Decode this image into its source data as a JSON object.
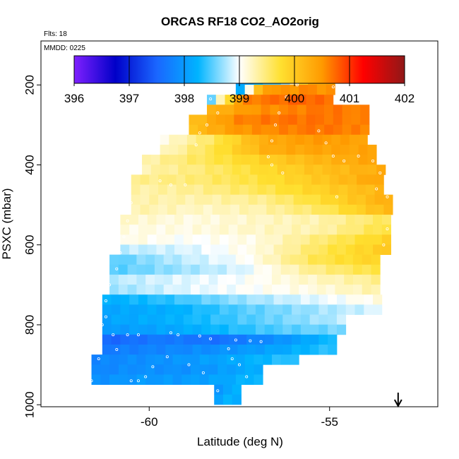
{
  "chart_data": {
    "type": "heatmap",
    "title": "ORCAS RF18 CO2_AO2orig",
    "subtitle_flights": "Flts: 18",
    "subtitle_date": "MMDD: 0225",
    "xlabel": "Latitude (deg N)",
    "ylabel": "PSXC (mbar)",
    "xlim": [
      -63.0,
      -52.0
    ],
    "ylim": [
      1005,
      90
    ],
    "x_ticks": [
      -60,
      -55
    ],
    "x_tick_labels": [
      "-60",
      "-55"
    ],
    "y_ticks": [
      200,
      400,
      600,
      800,
      1000
    ],
    "y_tick_labels": [
      "200",
      "400",
      "600",
      "800",
      "1000"
    ],
    "colorbar": {
      "range": [
        396,
        402
      ],
      "ticks": [
        396,
        397,
        398,
        399,
        400,
        401,
        402
      ],
      "tick_labels": [
        "396",
        "397",
        "398",
        "399",
        "400",
        "401",
        "402"
      ],
      "colors": [
        "#8020ff",
        "#0000c8",
        "#1a66ff",
        "#00b4ff",
        "#ffffff",
        "#ffe030",
        "#ff9a00",
        "#ff0000",
        "#901818"
      ]
    },
    "cell_width_deg": 0.25,
    "cell_height_mbar": 25,
    "rows": [
      {
        "p": 187,
        "lat0": -57.6,
        "lat1": -54.8,
        "c": [
          398.0,
          398.3,
          398.6,
          400.2,
          400.4
        ]
      },
      {
        "p": 212,
        "lat0": -57.6,
        "lat1": -54.8,
        "c": [
          398.2,
          400.5,
          400.5,
          400.6,
          400.5
        ]
      },
      {
        "p": 237,
        "lat0": -58.4,
        "lat1": -54.8,
        "c": [
          398.6,
          400.6,
          400.7,
          400.8,
          400.7
        ]
      },
      {
        "p": 262,
        "lat0": -58.4,
        "lat1": -54.0,
        "c": [
          400.2,
          400.5,
          400.6,
          400.7,
          400.6
        ]
      },
      {
        "p": 287,
        "lat0": -58.9,
        "lat1": -54.0,
        "c": [
          400.1,
          400.6,
          400.7,
          400.7,
          400.6
        ]
      },
      {
        "p": 312,
        "lat0": -58.9,
        "lat1": -54.0,
        "c": [
          400.1,
          400.5,
          400.6,
          400.7,
          400.6
        ]
      },
      {
        "p": 337,
        "lat0": -59.7,
        "lat1": -54.0,
        "c": [
          399.1,
          399.6,
          400.3,
          400.5,
          400.4
        ]
      },
      {
        "p": 362,
        "lat0": -59.7,
        "lat1": -53.7,
        "c": [
          399.2,
          399.7,
          400.3,
          400.4,
          400.4
        ]
      },
      {
        "p": 387,
        "lat0": -60.2,
        "lat1": -53.7,
        "c": [
          399.3,
          399.6,
          399.9,
          400.2,
          400.4
        ]
      },
      {
        "p": 412,
        "lat0": -60.2,
        "lat1": -53.5,
        "c": [
          399.3,
          399.5,
          399.8,
          400.1,
          400.3
        ]
      },
      {
        "p": 437,
        "lat0": -60.5,
        "lat1": -53.5,
        "c": [
          399.4,
          399.5,
          399.7,
          400.0,
          400.4
        ]
      },
      {
        "p": 462,
        "lat0": -60.5,
        "lat1": -53.5,
        "c": [
          399.3,
          399.4,
          399.6,
          399.9,
          400.2
        ]
      },
      {
        "p": 487,
        "lat0": -60.5,
        "lat1": -53.3,
        "c": [
          399.3,
          399.3,
          399.4,
          399.8,
          400.3
        ]
      },
      {
        "p": 512,
        "lat0": -60.5,
        "lat1": -53.3,
        "c": [
          399.3,
          399.2,
          399.3,
          399.6,
          400.2
        ]
      },
      {
        "p": 537,
        "lat0": -60.8,
        "lat1": -53.3,
        "c": [
          399.2,
          399.1,
          399.2,
          399.3,
          399.6
        ]
      },
      {
        "p": 562,
        "lat0": -60.8,
        "lat1": -53.3,
        "c": [
          399.1,
          399.1,
          399.2,
          399.3,
          399.7
        ]
      },
      {
        "p": 587,
        "lat0": -60.8,
        "lat1": -53.3,
        "c": [
          399.1,
          399.0,
          399.1,
          399.5,
          399.9
        ]
      },
      {
        "p": 612,
        "lat0": -60.8,
        "lat1": -53.3,
        "c": [
          398.8,
          398.9,
          399.1,
          399.6,
          400.0
        ]
      },
      {
        "p": 637,
        "lat0": -61.1,
        "lat1": -53.5,
        "c": [
          398.5,
          398.8,
          399.0,
          399.6,
          399.9
        ]
      },
      {
        "p": 662,
        "lat0": -61.1,
        "lat1": -53.5,
        "c": [
          398.5,
          398.7,
          398.9,
          399.4,
          399.7
        ]
      },
      {
        "p": 687,
        "lat0": -61.1,
        "lat1": -53.5,
        "c": [
          398.8,
          398.9,
          399.0,
          399.2,
          399.4
        ]
      },
      {
        "p": 712,
        "lat0": -61.1,
        "lat1": -53.5,
        "c": [
          398.7,
          398.9,
          399.0,
          399.1,
          399.3
        ]
      },
      {
        "p": 737,
        "lat0": -61.3,
        "lat1": -53.5,
        "c": [
          398.2,
          398.4,
          398.7,
          398.9,
          399.1
        ]
      },
      {
        "p": 762,
        "lat0": -61.3,
        "lat1": -53.5,
        "c": [
          398.1,
          398.2,
          398.5,
          398.7,
          398.9
        ]
      },
      {
        "p": 787,
        "lat0": -61.3,
        "lat1": -54.6,
        "c": [
          398.1,
          398.2,
          398.4,
          398.6,
          398.8
        ]
      },
      {
        "p": 812,
        "lat0": -61.3,
        "lat1": -54.6,
        "c": [
          398.0,
          398.1,
          398.3,
          398.5,
          398.6
        ]
      },
      {
        "p": 837,
        "lat0": -61.3,
        "lat1": -54.9,
        "c": [
          397.5,
          397.7,
          397.6,
          397.9,
          398.3
        ]
      },
      {
        "p": 862,
        "lat0": -61.3,
        "lat1": -54.9,
        "c": [
          397.7,
          397.8,
          397.9,
          398.1,
          398.4
        ]
      },
      {
        "p": 887,
        "lat0": -61.6,
        "lat1": -55.9,
        "c": [
          397.8,
          397.9,
          398.0,
          398.2,
          398.4
        ]
      },
      {
        "p": 912,
        "lat0": -61.6,
        "lat1": -56.9,
        "c": [
          397.8,
          397.9,
          397.9,
          398.0,
          398.2
        ]
      },
      {
        "p": 937,
        "lat0": -61.6,
        "lat1": -56.9,
        "c": [
          397.9,
          398.0,
          398.0,
          398.1,
          398.3
        ]
      },
      {
        "p": 962,
        "lat0": -58.2,
        "lat1": -57.4,
        "c": [
          398.0,
          398.1,
          398.1,
          398.2,
          398.2
        ]
      },
      {
        "p": 987,
        "lat0": -58.2,
        "lat1": -57.4,
        "c": [
          398.1,
          398.2,
          398.2,
          398.2,
          398.2
        ]
      }
    ],
    "track_points": [
      [
        -57.0,
        185
      ],
      [
        -56.6,
        185
      ],
      [
        -56.2,
        185
      ],
      [
        -55.8,
        185
      ],
      [
        -55.4,
        185
      ],
      [
        -55.1,
        190
      ],
      [
        -54.9,
        205
      ],
      [
        -54.8,
        225
      ],
      [
        -54.6,
        240
      ],
      [
        -55.9,
        200
      ],
      [
        -56.2,
        230
      ],
      [
        -56.4,
        270
      ],
      [
        -56.5,
        300
      ],
      [
        -56.6,
        340
      ],
      [
        -56.7,
        380
      ],
      [
        -56.6,
        400
      ],
      [
        -56.3,
        420
      ],
      [
        -58.3,
        235
      ],
      [
        -58.1,
        270
      ],
      [
        -58.4,
        300
      ],
      [
        -58.6,
        320
      ],
      [
        -58.7,
        350
      ],
      [
        -55.3,
        315
      ],
      [
        -55.1,
        345
      ],
      [
        -54.9,
        378
      ],
      [
        -54.6,
        390
      ],
      [
        -54.2,
        378
      ],
      [
        -53.8,
        390
      ],
      [
        -53.6,
        420
      ],
      [
        -53.7,
        460
      ],
      [
        -53.4,
        480
      ],
      [
        -53.2,
        520
      ],
      [
        -53.4,
        560
      ],
      [
        -53.5,
        600
      ],
      [
        -54.8,
        480
      ],
      [
        -59.4,
        450
      ],
      [
        -59.0,
        450
      ],
      [
        -59.7,
        440
      ],
      [
        -60.5,
        495
      ],
      [
        -60.6,
        540
      ],
      [
        -60.7,
        580
      ],
      [
        -60.8,
        620
      ],
      [
        -60.9,
        660
      ],
      [
        -61.1,
        700
      ],
      [
        -61.2,
        740
      ],
      [
        -61.2,
        780
      ],
      [
        -61.3,
        800
      ],
      [
        -61.0,
        825
      ],
      [
        -60.6,
        825
      ],
      [
        -60.3,
        825
      ],
      [
        -59.4,
        820
      ],
      [
        -59.2,
        825
      ],
      [
        -58.6,
        828
      ],
      [
        -58.3,
        835
      ],
      [
        -57.6,
        838
      ],
      [
        -57.2,
        840
      ],
      [
        -56.9,
        842
      ],
      [
        -57.8,
        860
      ],
      [
        -57.7,
        885
      ],
      [
        -57.5,
        900
      ],
      [
        -57.3,
        930
      ],
      [
        -57.1,
        960
      ],
      [
        -56.9,
        968
      ],
      [
        -58.1,
        965
      ],
      [
        -59.9,
        905
      ],
      [
        -60.1,
        930
      ],
      [
        -60.3,
        940
      ],
      [
        -60.5,
        940
      ],
      [
        -61.4,
        885
      ],
      [
        -61.6,
        940
      ],
      [
        -61.9,
        940
      ],
      [
        -60.9,
        862
      ],
      [
        -59.5,
        880
      ],
      [
        -58.9,
        900
      ],
      [
        -58.5,
        920
      ]
    ],
    "arrow_marker_lat": -53.1,
    "frame_ranges": {
      "x": [
        -63.0,
        -52.0
      ],
      "y": [
        90,
        1005
      ]
    }
  }
}
